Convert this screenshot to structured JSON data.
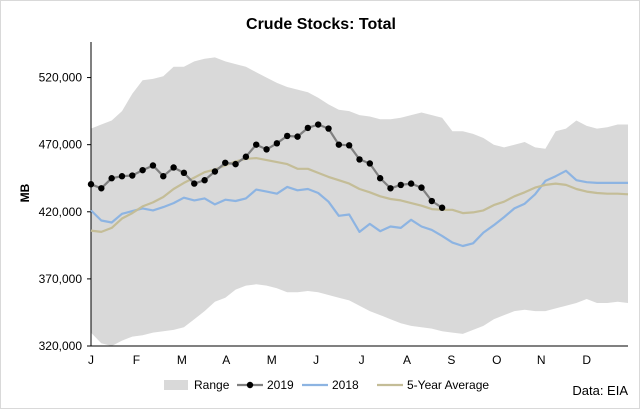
{
  "chart_data": {
    "type": "line",
    "title": "Crude Stocks: Total",
    "ylabel": "MB",
    "xlabel": "",
    "source": "Data: EIA",
    "ylim": [
      320000,
      545000
    ],
    "yticks": [
      320000,
      370000,
      420000,
      470000,
      520000
    ],
    "ytick_labels": [
      "320,000",
      "370,000",
      "420,000",
      "470,000",
      "520,000"
    ],
    "x_range": [
      1,
      53
    ],
    "month_labels": [
      "J",
      "F",
      "M",
      "A",
      "M",
      "J",
      "J",
      "A",
      "S",
      "O",
      "N",
      "D"
    ],
    "month_weeks": [
      1,
      5.4,
      9.8,
      14.1,
      18.5,
      22.8,
      27.2,
      31.6,
      35.9,
      40.3,
      44.6,
      49
    ],
    "grid": false,
    "legend_position": "bottom",
    "legend": [
      "Range",
      "2019",
      "2018",
      "5-Year Average"
    ],
    "range": {
      "name": "Range",
      "color": "#d9d9d9",
      "upper": [
        482000,
        485000,
        488000,
        495000,
        508000,
        518000,
        519000,
        521000,
        528000,
        528000,
        532000,
        534000,
        535000,
        532000,
        530000,
        528000,
        524000,
        520000,
        516000,
        513000,
        511000,
        509000,
        505000,
        500000,
        496000,
        495000,
        492000,
        491000,
        489000,
        489000,
        490000,
        492000,
        494000,
        492000,
        490000,
        480000,
        480000,
        478000,
        475000,
        470000,
        468000,
        470000,
        472000,
        468000,
        467000,
        480000,
        482000,
        488000,
        484000,
        482000,
        483000,
        485000,
        485000
      ],
      "lower": [
        330000,
        322000,
        320000,
        324000,
        327000,
        328000,
        330000,
        331000,
        332000,
        334000,
        340000,
        346000,
        353000,
        356000,
        362000,
        365000,
        366000,
        365000,
        363000,
        360000,
        360000,
        361000,
        360000,
        358000,
        356000,
        354000,
        350000,
        346000,
        343000,
        340000,
        337000,
        335000,
        334000,
        333000,
        331000,
        330000,
        329000,
        332000,
        335000,
        340000,
        343000,
        346000,
        347000,
        346000,
        346000,
        348000,
        350000,
        352000,
        355000,
        352000,
        352000,
        353000,
        352000
      ]
    },
    "series": [
      {
        "name": "2019",
        "color": "#000000",
        "line_color": "#808080",
        "x": [
          1,
          2,
          3,
          4,
          5,
          6,
          7,
          8,
          9,
          10,
          11,
          12,
          13,
          14,
          15,
          16,
          17,
          18,
          19,
          20,
          21,
          22,
          23,
          24,
          25,
          26,
          27,
          28,
          29,
          30,
          31,
          32,
          33,
          34,
          35
        ],
        "values": [
          440500,
          437500,
          445000,
          446500,
          447000,
          451000,
          454500,
          446500,
          453000,
          449000,
          441000,
          443500,
          450000,
          456500,
          455500,
          461000,
          470000,
          466500,
          471000,
          476500,
          476000,
          482500,
          485000,
          482000,
          470000,
          469500,
          459000,
          456000,
          445000,
          437500,
          440000,
          441000,
          438000,
          428000,
          423000
        ]
      },
      {
        "name": "2018",
        "color": "#8db4e2",
        "x": [
          1,
          2,
          3,
          4,
          5,
          6,
          7,
          8,
          9,
          10,
          11,
          12,
          13,
          14,
          15,
          16,
          17,
          18,
          19,
          20,
          21,
          22,
          23,
          24,
          25,
          26,
          27,
          28,
          29,
          30,
          31,
          32,
          33,
          34,
          35,
          36,
          37,
          38,
          39,
          40,
          41,
          42,
          43,
          44,
          45,
          46,
          47,
          48,
          49,
          50,
          51,
          52,
          53
        ],
        "values": [
          421000,
          413500,
          412000,
          418500,
          420500,
          422500,
          421000,
          423500,
          426500,
          430500,
          428500,
          430000,
          425500,
          429000,
          428000,
          430000,
          436500,
          435000,
          433500,
          438500,
          436000,
          437000,
          434000,
          427500,
          417000,
          418000,
          405000,
          411000,
          405500,
          409000,
          408000,
          414000,
          409000,
          406500,
          402000,
          397000,
          394500,
          396500,
          404500,
          410000,
          416000,
          422500,
          426000,
          433000,
          443000,
          446500,
          450500,
          443500,
          442000,
          441500,
          441500,
          441500,
          441500
        ]
      },
      {
        "name": "5-Year Average",
        "color": "#c4bd97",
        "x": [
          1,
          2,
          3,
          4,
          5,
          6,
          7,
          8,
          9,
          10,
          11,
          12,
          13,
          14,
          15,
          16,
          17,
          18,
          19,
          20,
          21,
          22,
          23,
          24,
          25,
          26,
          27,
          28,
          29,
          30,
          31,
          32,
          33,
          34,
          35,
          36,
          37,
          38,
          39,
          40,
          41,
          42,
          43,
          44,
          45,
          46,
          47,
          48,
          49,
          50,
          51,
          52,
          53
        ],
        "values": [
          406000,
          405000,
          408000,
          415000,
          419000,
          424000,
          427000,
          431000,
          437000,
          441500,
          445500,
          449500,
          451500,
          454500,
          457500,
          459500,
          460000,
          458500,
          457000,
          455500,
          452000,
          452000,
          449000,
          446000,
          443500,
          441000,
          437000,
          434500,
          431500,
          429500,
          428500,
          426500,
          424500,
          422000,
          421500,
          421500,
          419000,
          419500,
          421000,
          425000,
          427500,
          431500,
          434500,
          438000,
          440000,
          441000,
          440000,
          437000,
          435000,
          434000,
          433500,
          433500,
          433000
        ]
      }
    ]
  }
}
